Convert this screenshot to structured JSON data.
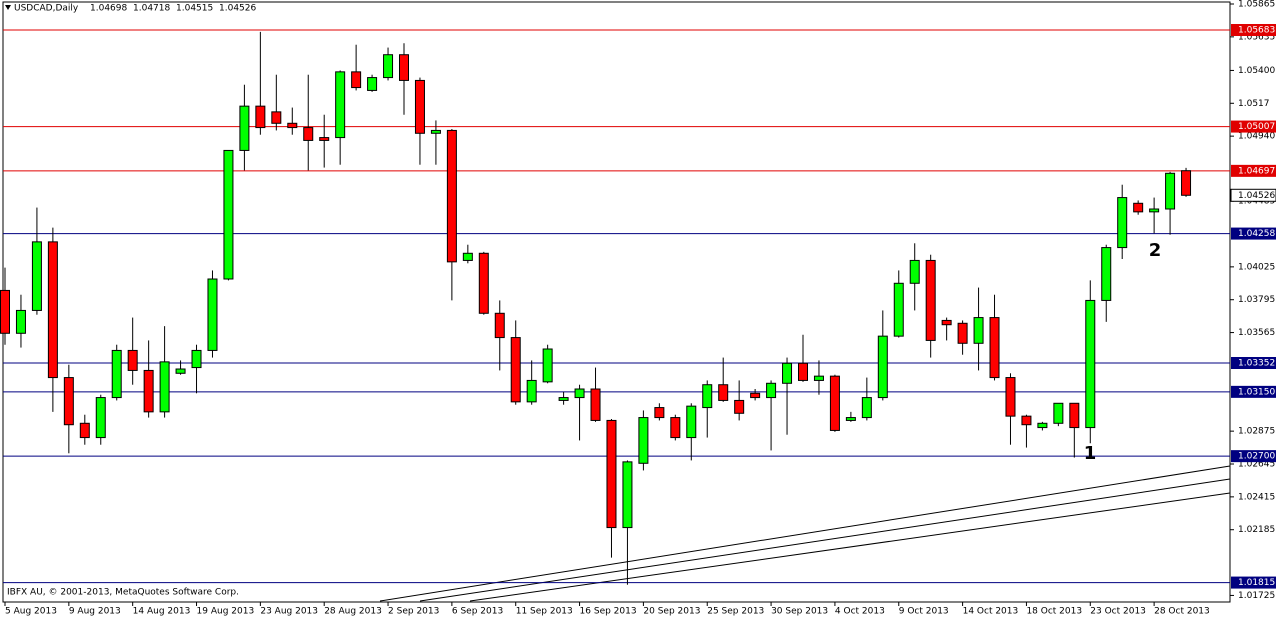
{
  "chart_data": {
    "type": "candlestick",
    "symbol": "USDCAD,Daily",
    "header_values": [
      1.04698,
      1.04718,
      1.04515,
      1.04526
    ],
    "footer": "IBFX AU, © 2001-2013, MetaQuotes Software Corp.",
    "categories": [
      "5 Aug 2013",
      null,
      null,
      null,
      "9 Aug 2013",
      null,
      null,
      null,
      "14 Aug 2013",
      null,
      null,
      null,
      "19 Aug 2013",
      null,
      null,
      null,
      "23 Aug 2013",
      null,
      null,
      null,
      "28 Aug 2013",
      null,
      null,
      null,
      "2 Sep 2013",
      null,
      null,
      null,
      "6 Sep 2013",
      null,
      null,
      null,
      "11 Sep 2013",
      null,
      null,
      null,
      "16 Sep 2013",
      null,
      null,
      null,
      "20 Sep 2013",
      null,
      null,
      null,
      "25 Sep 2013",
      null,
      null,
      null,
      "30 Sep 2013",
      null,
      null,
      null,
      "4 Oct 2013",
      null,
      null,
      null,
      "9 Oct 2013",
      null,
      null,
      null,
      "14 Oct 2013",
      null,
      null,
      null,
      "18 Oct 2013",
      null,
      null,
      null,
      "23 Oct 2013",
      null,
      null,
      null,
      "28 Oct 2013",
      null,
      null
    ],
    "open": [
      1.0386,
      1.0356,
      1.0372,
      1.042,
      1.0325,
      1.0293,
      1.0283,
      1.0311,
      1.0344,
      1.033,
      1.0301,
      1.0328,
      1.0332,
      1.0344,
      1.0394,
      1.0484,
      1.0515,
      1.0511,
      1.0503,
      1.05,
      1.0493,
      1.0493,
      1.0539,
      1.0526,
      1.0535,
      1.0551,
      1.0533,
      1.0496,
      1.0498,
      1.0407,
      1.0412,
      1.037,
      1.0353,
      1.0308,
      1.0322,
      1.0309,
      1.0311,
      1.0317,
      1.0295,
      1.022,
      1.0265,
      1.0304,
      1.0297,
      1.0283,
      1.0304,
      1.032,
      1.0309,
      1.0314,
      1.0311,
      1.0321,
      1.0335,
      1.0323,
      1.0326,
      1.0295,
      1.0297,
      1.0311,
      1.0354,
      1.0391,
      1.0407,
      1.0365,
      1.0363,
      1.0349,
      1.0367,
      1.0325,
      1.0298,
      1.029,
      1.0293,
      1.0307,
      1.029,
      1.0379,
      1.0416,
      1.0447,
      1.0441,
      1.0443,
      1.04698
    ],
    "high": [
      1.0402,
      1.0383,
      1.0444,
      1.043,
      1.0334,
      1.0299,
      1.0313,
      1.0348,
      1.0367,
      1.0351,
      1.0361,
      1.0337,
      1.0348,
      1.04,
      1.0484,
      1.053,
      1.0567,
      1.0537,
      1.0514,
      1.0537,
      1.0509,
      1.054,
      1.0558,
      1.0537,
      1.0556,
      1.0559,
      1.0535,
      1.0505,
      1.0499,
      1.0418,
      1.0413,
      1.0379,
      1.0365,
      1.0337,
      1.0348,
      1.0315,
      1.032,
      1.0332,
      1.0296,
      1.0267,
      1.0302,
      1.0307,
      1.0299,
      1.0307,
      1.0323,
      1.0339,
      1.0323,
      1.0317,
      1.0323,
      1.0339,
      1.0355,
      1.0337,
      1.0327,
      1.0301,
      1.0325,
      1.0372,
      1.04,
      1.0419,
      1.0411,
      1.0367,
      1.0365,
      1.0388,
      1.0383,
      1.0328,
      1.0299,
      1.0294,
      1.0307,
      1.0307,
      1.0393,
      1.0418,
      1.046,
      1.0449,
      1.0451,
      1.0469,
      1.04718
    ],
    "low": [
      1.0348,
      1.0346,
      1.0369,
      1.0301,
      1.0272,
      1.0278,
      1.0278,
      1.0309,
      1.032,
      1.0297,
      1.0297,
      1.0327,
      1.0314,
      1.0339,
      1.0393,
      1.047,
      1.0495,
      1.0498,
      1.0495,
      1.047,
      1.0472,
      1.0474,
      1.0526,
      1.0525,
      1.0533,
      1.0509,
      1.0474,
      1.0474,
      1.0379,
      1.0405,
      1.0369,
      1.033,
      1.0306,
      1.0306,
      1.0321,
      1.0306,
      1.0281,
      1.0294,
      1.0199,
      1.018,
      1.026,
      1.0295,
      1.0281,
      1.0267,
      1.0283,
      1.0308,
      1.0295,
      1.0309,
      1.0274,
      1.0285,
      1.0322,
      1.0313,
      1.0287,
      1.0294,
      1.0295,
      1.0309,
      1.0353,
      1.0372,
      1.0339,
      1.0351,
      1.0341,
      1.033,
      1.0323,
      1.0278,
      1.0276,
      1.0288,
      1.0291,
      1.0269,
      1.0279,
      1.0364,
      1.0408,
      1.0439,
      1.0426,
      1.0425,
      1.04515
    ],
    "close": [
      1.0356,
      1.0372,
      1.042,
      1.0325,
      1.0292,
      1.0283,
      1.0311,
      1.0344,
      1.033,
      1.0301,
      1.0336,
      1.0331,
      1.0344,
      1.0394,
      1.0484,
      1.0515,
      1.05,
      1.0503,
      1.05,
      1.0491,
      1.0491,
      1.0539,
      1.0528,
      1.0535,
      1.0551,
      1.0533,
      1.0496,
      1.0498,
      1.0406,
      1.0412,
      1.037,
      1.0353,
      1.0308,
      1.0323,
      1.0345,
      1.0311,
      1.0317,
      1.0295,
      1.022,
      1.0266,
      1.0297,
      1.0297,
      1.0283,
      1.0305,
      1.032,
      1.0309,
      1.03,
      1.0311,
      1.0321,
      1.0335,
      1.0323,
      1.0326,
      1.0288,
      1.0297,
      1.0311,
      1.0354,
      1.0391,
      1.0407,
      1.0351,
      1.0362,
      1.0349,
      1.0367,
      1.0325,
      1.0298,
      1.0292,
      1.0293,
      1.0307,
      1.029,
      1.0379,
      1.0416,
      1.0451,
      1.0441,
      1.0443,
      1.0468,
      1.04526
    ],
    "up_color": "#00ff00",
    "down_color": "#ff0000",
    "ylim": [
      1.01679,
      1.05893
    ],
    "yticks": [
      1.05865,
      1.05635,
      {
        "value": 1.054,
        "label": "1.05400"
      },
      1.0517,
      {
        "value": 1.0494,
        "label": "1.04940"
      },
      1.04485,
      1.04025,
      1.03795,
      1.03565,
      1.02875,
      1.02645,
      1.02415,
      1.02185,
      1.01725
    ],
    "grid": false,
    "levels": [
      {
        "value": 1.05683,
        "color": "#e00000"
      },
      {
        "value": 1.05007,
        "color": "#e00000"
      },
      {
        "value": 1.04697,
        "color": "#e00000"
      },
      {
        "value": 1.04258,
        "color": "#000080"
      },
      {
        "value": 1.03352,
        "color": "#000080"
      },
      {
        "value": 1.0315,
        "label": "1.03150",
        "color": "#000080"
      },
      {
        "value": 1.027,
        "label": "1.02700",
        "color": "#000080"
      },
      {
        "value": 1.01815,
        "color": "#000080"
      }
    ],
    "bid": 1.04526,
    "annotations": [
      "1",
      "2"
    ]
  }
}
